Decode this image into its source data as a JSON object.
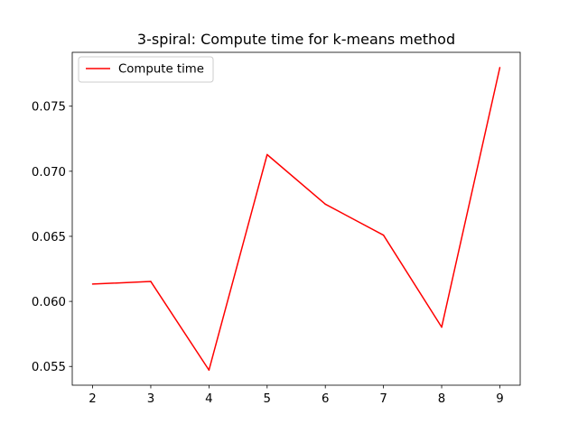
{
  "chart_data": {
    "type": "line",
    "title": "3-spiral: Compute time for k-means method",
    "xlabel": "",
    "ylabel": "",
    "x": [
      2,
      3,
      4,
      5,
      6,
      7,
      8,
      9
    ],
    "series": [
      {
        "name": "Compute time",
        "color": "#ff0000",
        "values": [
          0.06133,
          0.06153,
          0.05472,
          0.07128,
          0.06747,
          0.06509,
          0.05802,
          0.07797
        ]
      }
    ],
    "xlim": [
      1.65,
      9.35
    ],
    "ylim": [
      0.05356,
      0.07914
    ],
    "xticks": [
      2,
      3,
      4,
      5,
      6,
      7,
      8,
      9
    ],
    "xtick_labels": [
      "2",
      "3",
      "4",
      "5",
      "6",
      "7",
      "8",
      "9"
    ],
    "yticks": [
      0.055,
      0.06,
      0.065,
      0.07,
      0.075
    ],
    "ytick_labels": [
      "0.055",
      "0.060",
      "0.065",
      "0.070",
      "0.075"
    ],
    "grid": false,
    "legend_position": "upper-left"
  }
}
